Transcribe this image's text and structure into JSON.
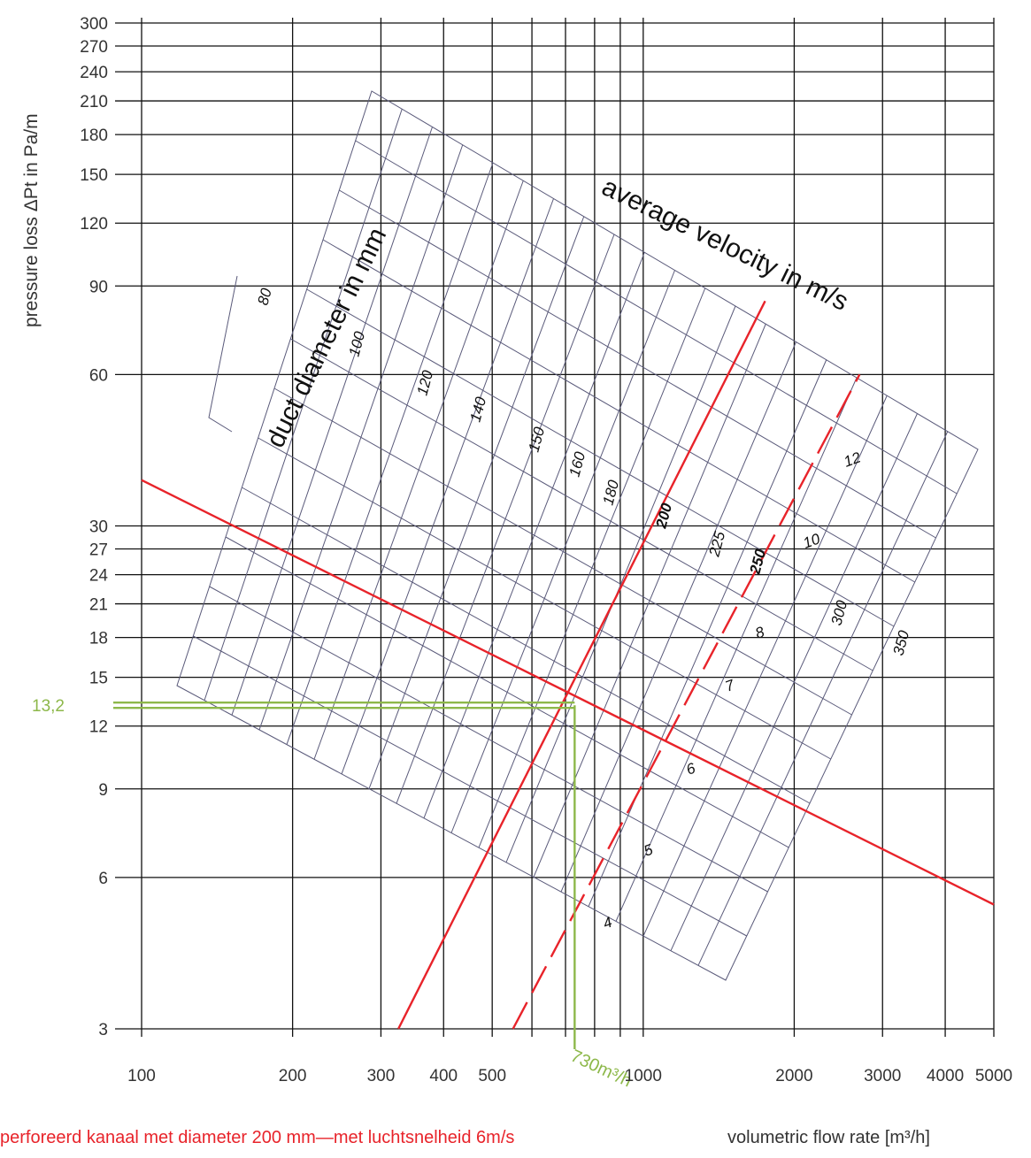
{
  "chart_data": {
    "type": "line",
    "title": "",
    "xlabel": "volumetric flow rate [m³/h]",
    "ylabel": "pressure loss ΔPt in Pa/m",
    "x_scale": "log",
    "y_scale": "log",
    "xlim": [
      100,
      5000
    ],
    "ylim": [
      3,
      300
    ],
    "x_ticks": [
      100,
      200,
      300,
      400,
      500,
      1000,
      2000,
      3000,
      4000,
      5000
    ],
    "x_tick_labels": [
      "100",
      "200",
      "300",
      "400",
      "500",
      "1000",
      "2000",
      "3000",
      "4000",
      "5000"
    ],
    "x_minor_grid": [
      600,
      700,
      800,
      900
    ],
    "y_ticks": [
      3,
      6,
      9,
      12,
      15,
      18,
      21,
      24,
      27,
      30,
      60,
      90,
      120,
      150,
      180,
      210,
      240,
      270,
      300
    ],
    "y_tick_labels": [
      "3",
      "6",
      "9",
      "12",
      "15",
      "18",
      "21",
      "24",
      "27",
      "30",
      "60",
      "90",
      "120",
      "150",
      "180",
      "210",
      "240",
      "270",
      "300"
    ],
    "grid": true,
    "band_labels": {
      "diameter": "duct diameter in mm",
      "velocity": "average velocity in m/s"
    },
    "duct_diameters_mm": [
      "80",
      "100",
      "120",
      "140",
      "150",
      "160",
      "180",
      "200",
      "225",
      "250",
      "300",
      "350"
    ],
    "highlighted_diameters": [
      "200",
      "250"
    ],
    "velocities_m_s": [
      "4",
      "5",
      "6",
      "7",
      "8",
      "10",
      "12"
    ],
    "series": [
      {
        "style": "solid",
        "color": "#e8232a",
        "note": "200",
        "x": [
          325,
          1750
        ],
        "y": [
          3,
          84
        ]
      },
      {
        "style": "dashed",
        "color": "#e8232a",
        "note": "250",
        "x": [
          550,
          2700
        ],
        "y": [
          3,
          60
        ]
      },
      {
        "style": "solid",
        "color": "#e8232a",
        "note": "6",
        "x": [
          100,
          5000
        ],
        "y": [
          37,
          5.3
        ]
      }
    ],
    "annotations": {
      "operating_point": {
        "x": 730,
        "y": 13.2
      },
      "y_marker_label": "13,2",
      "x_marker_label": "730m³/h",
      "marker_color": "#8db84a"
    }
  },
  "footnote": "perforeerd kanaal met diameter 200 mm—met luchtsnelheid 6m/s",
  "colors": {
    "highlight_red": "#e8232a",
    "marker_green": "#8db84a",
    "grid": "#111111",
    "nomogram_net": "#5a5a7a"
  }
}
